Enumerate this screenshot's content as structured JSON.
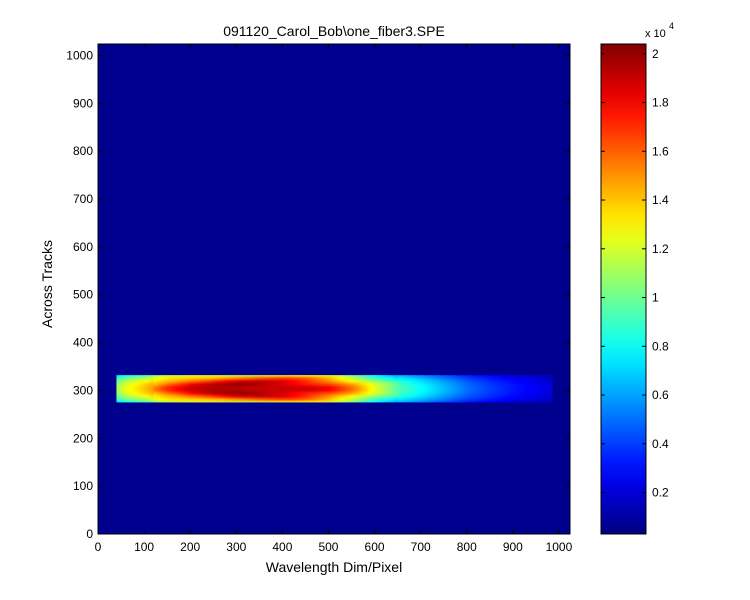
{
  "chart_data": {
    "type": "heatmap",
    "title": "091120_Carol_Bob\\one_fiber3.SPE",
    "xlabel": "Wavelength Dim/Pixel",
    "ylabel": "Across Tracks",
    "xlim": [
      0,
      1024
    ],
    "ylim": [
      0,
      1024
    ],
    "xticks": [
      "0",
      "100",
      "200",
      "300",
      "400",
      "500",
      "600",
      "700",
      "800",
      "900",
      "1000"
    ],
    "yticks": [
      "0",
      "100",
      "200",
      "300",
      "400",
      "500",
      "600",
      "700",
      "800",
      "900",
      "1000"
    ],
    "colormap": "jet",
    "background_value": 0,
    "band": {
      "x_start": 40,
      "x_end": 985,
      "y_low": 275,
      "y_high": 332,
      "y_center": 303
    },
    "band_intensity_profile": {
      "x": [
        40,
        60,
        100,
        150,
        200,
        250,
        300,
        350,
        400,
        450,
        500,
        550,
        600,
        650,
        700,
        750,
        800,
        850,
        900,
        950,
        985
      ],
      "peak": [
        11000,
        12500,
        14000,
        16500,
        18000,
        19000,
        19800,
        20000,
        19800,
        19000,
        17500,
        15000,
        12000,
        9500,
        8000,
        6500,
        5000,
        4000,
        3200,
        2600,
        2000
      ]
    },
    "colorbar": {
      "multiplier": "x 10",
      "exponent": "4",
      "min": 300,
      "max": 20400,
      "ticks": [
        "0.2",
        "0.4",
        "0.6",
        "0.8",
        "1",
        "1.2",
        "1.4",
        "1.6",
        "1.8",
        "2"
      ],
      "tick_values": [
        0.2,
        0.4,
        0.6,
        0.8,
        1.0,
        1.2,
        1.4,
        1.6,
        1.8,
        2.0
      ]
    }
  }
}
